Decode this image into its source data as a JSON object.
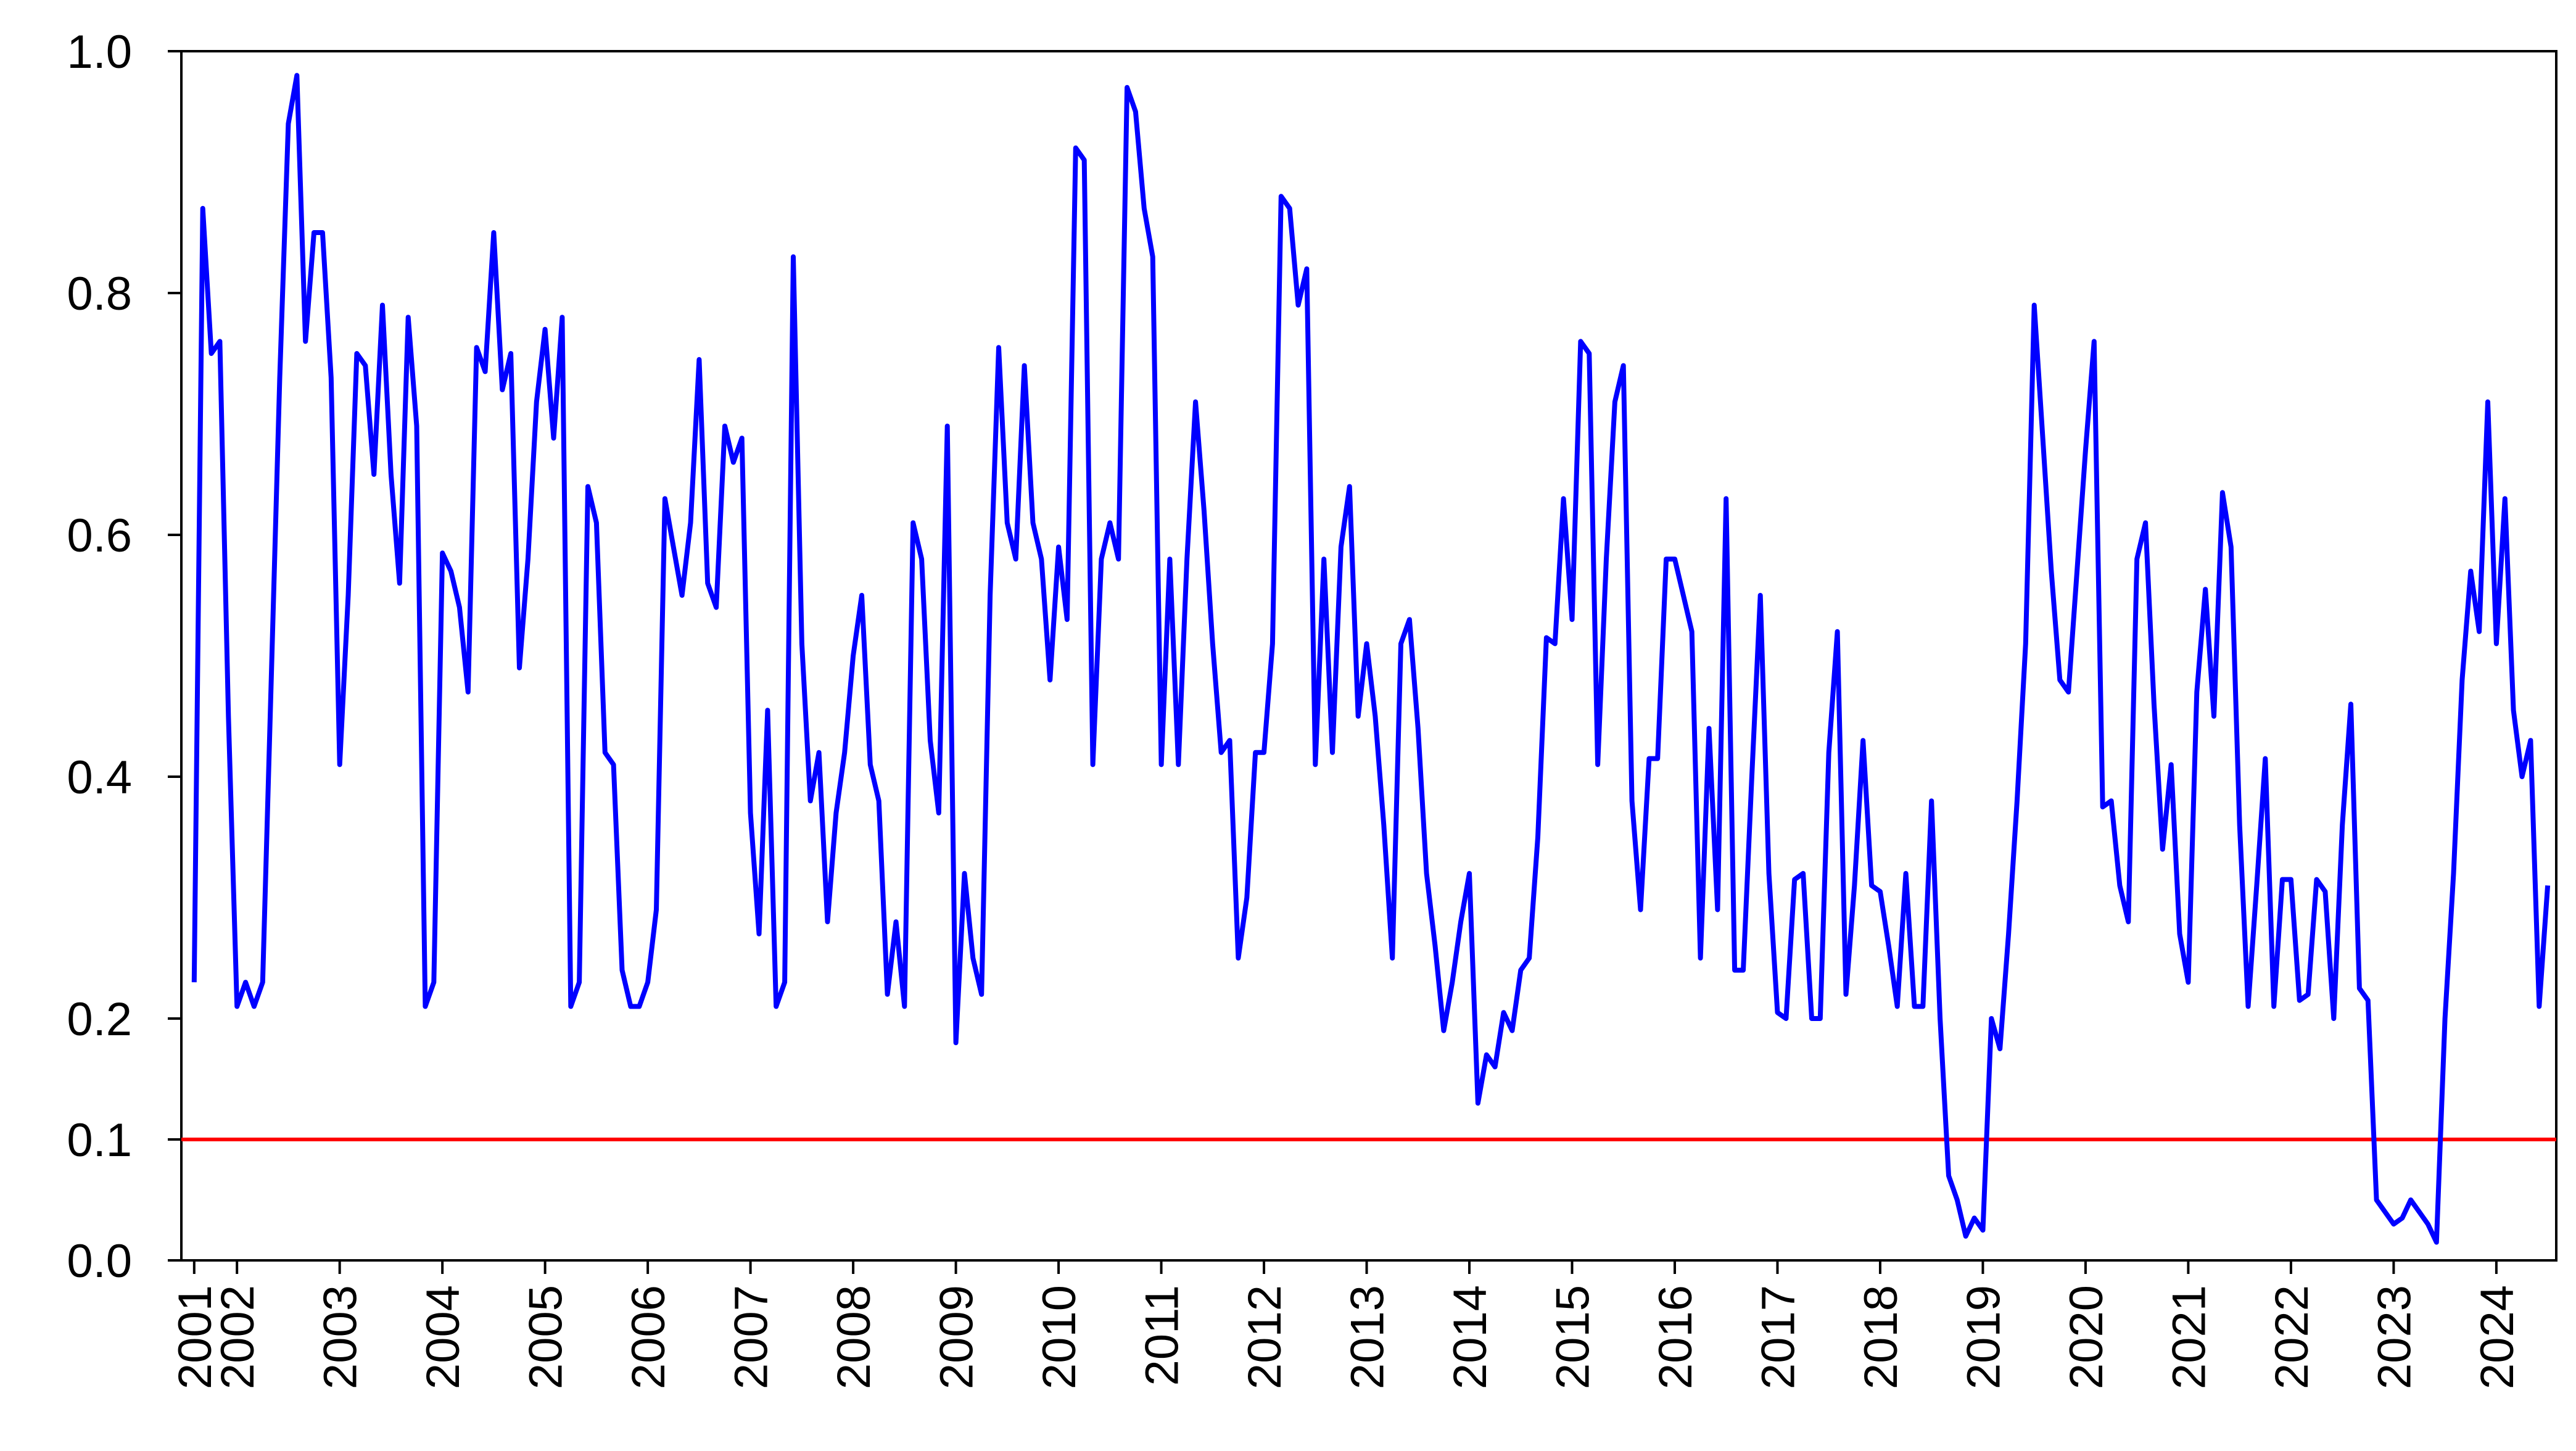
{
  "chart_data": {
    "type": "line",
    "categories": [
      "2001",
      null,
      null,
      null,
      null,
      "2002",
      null,
      null,
      null,
      null,
      null,
      null,
      null,
      null,
      null,
      null,
      null,
      "2003",
      null,
      null,
      null,
      null,
      null,
      null,
      null,
      null,
      null,
      null,
      null,
      "2004",
      null,
      null,
      null,
      null,
      null,
      null,
      null,
      null,
      null,
      null,
      null,
      "2005",
      null,
      null,
      null,
      null,
      null,
      null,
      null,
      null,
      null,
      null,
      null,
      "2006",
      null,
      null,
      null,
      null,
      null,
      null,
      null,
      null,
      null,
      null,
      null,
      "2007",
      null,
      null,
      null,
      null,
      null,
      null,
      null,
      null,
      null,
      null,
      null,
      "2008",
      null,
      null,
      null,
      null,
      null,
      null,
      null,
      null,
      null,
      null,
      null,
      "2009",
      null,
      null,
      null,
      null,
      null,
      null,
      null,
      null,
      null,
      null,
      null,
      "2010",
      null,
      null,
      null,
      null,
      null,
      null,
      null,
      null,
      null,
      null,
      null,
      "2011",
      null,
      null,
      null,
      null,
      null,
      null,
      null,
      null,
      null,
      null,
      null,
      "2012",
      null,
      null,
      null,
      null,
      null,
      null,
      null,
      null,
      null,
      null,
      null,
      "2013",
      null,
      null,
      null,
      null,
      null,
      null,
      null,
      null,
      null,
      null,
      null,
      "2014",
      null,
      null,
      null,
      null,
      null,
      null,
      null,
      null,
      null,
      null,
      null,
      "2015",
      null,
      null,
      null,
      null,
      null,
      null,
      null,
      null,
      null,
      null,
      null,
      "2016",
      null,
      null,
      null,
      null,
      null,
      null,
      null,
      null,
      null,
      null,
      null,
      "2017",
      null,
      null,
      null,
      null,
      null,
      null,
      null,
      null,
      null,
      null,
      null,
      "2018",
      null,
      null,
      null,
      null,
      null,
      null,
      null,
      null,
      null,
      null,
      null,
      "2019",
      null,
      null,
      null,
      null,
      null,
      null,
      null,
      null,
      null,
      null,
      null,
      "2020",
      null,
      null,
      null,
      null,
      null,
      null,
      null,
      null,
      null,
      null,
      null,
      "2021",
      null,
      null,
      null,
      null,
      null,
      null,
      null,
      null,
      null,
      null,
      null,
      "2022",
      null,
      null,
      null,
      null,
      null,
      null,
      null,
      null,
      null,
      null,
      null,
      "2023",
      null,
      null,
      null,
      null,
      null,
      null,
      null,
      null,
      null,
      null,
      null,
      "2024",
      null,
      null,
      null,
      null,
      null,
      null
    ],
    "series": [
      {
        "color": "#0000ff",
        "values": [
          0.23,
          0.87,
          0.75,
          0.76,
          0.45,
          0.21,
          0.23,
          0.21,
          0.23,
          0.48,
          0.73,
          0.94,
          0.98,
          0.76,
          0.85,
          0.85,
          0.73,
          0.41,
          0.55,
          0.75,
          0.74,
          0.65,
          0.79,
          0.65,
          0.56,
          0.78,
          0.69,
          0.21,
          0.23,
          0.585,
          0.57,
          0.54,
          0.47,
          0.755,
          0.735,
          0.85,
          0.72,
          0.75,
          0.49,
          0.58,
          0.71,
          0.77,
          0.68,
          0.78,
          0.21,
          0.23,
          0.64,
          0.61,
          0.42,
          0.41,
          0.24,
          0.21,
          0.21,
          0.23,
          0.29,
          0.63,
          0.59,
          0.55,
          0.61,
          0.745,
          0.56,
          0.54,
          0.69,
          0.66,
          0.68,
          0.37,
          0.27,
          0.455,
          0.21,
          0.23,
          0.83,
          0.51,
          0.38,
          0.42,
          0.28,
          0.37,
          0.42,
          0.5,
          0.55,
          0.41,
          0.38,
          0.22,
          0.28,
          0.21,
          0.61,
          0.58,
          0.43,
          0.37,
          0.69,
          0.18,
          0.32,
          0.25,
          0.22,
          0.55,
          0.755,
          0.61,
          0.58,
          0.74,
          0.61,
          0.58,
          0.48,
          0.59,
          0.53,
          0.92,
          0.91,
          0.41,
          0.58,
          0.61,
          0.58,
          0.97,
          0.95,
          0.87,
          0.83,
          0.41,
          0.58,
          0.41,
          0.58,
          0.71,
          0.62,
          0.51,
          0.42,
          0.43,
          0.25,
          0.3,
          0.42,
          0.42,
          0.51,
          0.88,
          0.87,
          0.79,
          0.82,
          0.41,
          0.58,
          0.42,
          0.59,
          0.64,
          0.45,
          0.51,
          0.45,
          0.36,
          0.25,
          0.51,
          0.53,
          0.44,
          0.32,
          0.26,
          0.19,
          0.23,
          0.28,
          0.32,
          0.13,
          0.17,
          0.16,
          0.205,
          0.19,
          0.24,
          0.25,
          0.35,
          0.515,
          0.51,
          0.63,
          0.53,
          0.76,
          0.75,
          0.41,
          0.58,
          0.71,
          0.74,
          0.38,
          0.29,
          0.415,
          0.415,
          0.58,
          0.58,
          0.55,
          0.52,
          0.25,
          0.44,
          0.29,
          0.63,
          0.24,
          0.24,
          0.4,
          0.55,
          0.32,
          0.205,
          0.2,
          0.315,
          0.32,
          0.2,
          0.2,
          0.42,
          0.52,
          0.22,
          0.31,
          0.43,
          0.31,
          0.305,
          0.26,
          0.21,
          0.32,
          0.21,
          0.21,
          0.38,
          0.2,
          0.07,
          0.05,
          0.02,
          0.035,
          0.025,
          0.2,
          0.175,
          0.27,
          0.38,
          0.51,
          0.79,
          0.68,
          0.57,
          0.48,
          0.47,
          0.57,
          0.67,
          0.76,
          0.375,
          0.38,
          0.31,
          0.28,
          0.58,
          0.61,
          0.46,
          0.34,
          0.41,
          0.27,
          0.23,
          0.47,
          0.555,
          0.45,
          0.635,
          0.59,
          0.36,
          0.21,
          0.31,
          0.415,
          0.21,
          0.315,
          0.315,
          0.215,
          0.22,
          0.315,
          0.305,
          0.2,
          0.36,
          0.46,
          0.225,
          0.215,
          0.05,
          0.04,
          0.03,
          0.035,
          0.05,
          0.04,
          0.03,
          0.015,
          0.2,
          0.32,
          0.48,
          0.57,
          0.52,
          0.71,
          0.51,
          0.63,
          0.455,
          0.4,
          0.43,
          0.21,
          0.31
        ]
      }
    ],
    "reference_line": {
      "value": 0.1,
      "color": "#ff0000"
    },
    "ylim": [
      0,
      1
    ],
    "yticks": [
      {
        "value": 0,
        "label": "0.0"
      },
      0.1,
      0.2,
      0.4,
      0.6,
      0.8,
      {
        "value": 1,
        "label": "1.0"
      }
    ]
  }
}
